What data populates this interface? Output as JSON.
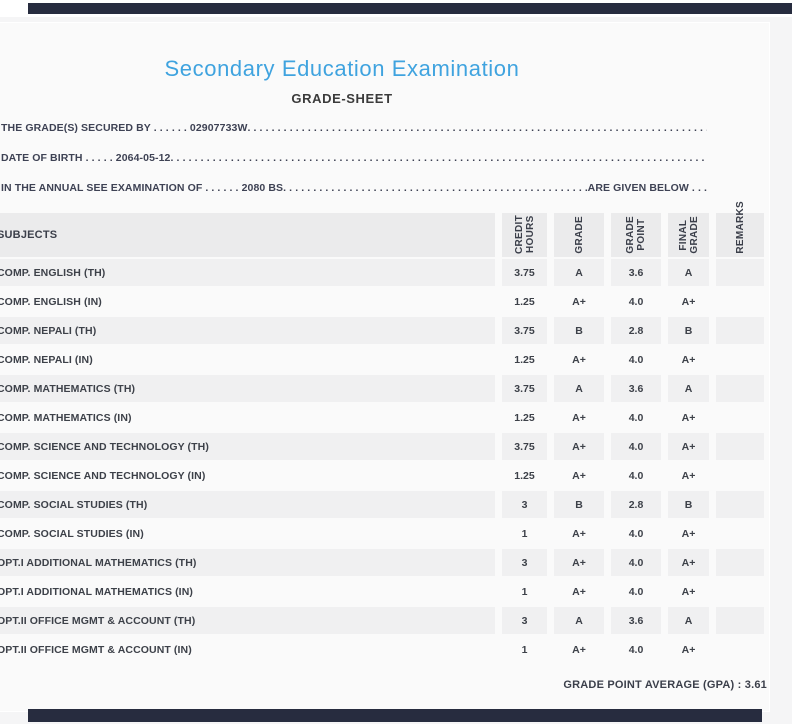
{
  "page": {
    "title": "Secondary Education Examination",
    "subtitle": "GRADE-SHEET"
  },
  "dot_fill": ". . . . . . . . . . . . . . . . . . . . . . . . . . . . . . . . . . . . . . . . . . . . . . . . . . . . . . . . . . . . . . . . . . . . . . . . . . . . . . . . . . . . . . . . . . . . . . . . . . . .",
  "info_lines": [
    {
      "lead": "THE GRADE(S) SECURED BY . . . . . . 02907733W ",
      "suffix": ""
    },
    {
      "lead": "DATE OF BIRTH . . . . . 2064-05-12 ",
      "suffix": ""
    },
    {
      "lead": "IN THE ANNUAL SEE EXAMINATION OF . . . . . . 2080 BS ",
      "suffix": " ARE GIVEN BELOW . . ."
    }
  ],
  "table": {
    "subjects_header": "SUBJECTS",
    "columns": [
      "CREDIT\nHOURS",
      "GRADE",
      "GRADE\nPOINT",
      "FINAL\nGRADE",
      "REMARKS"
    ],
    "rows": [
      {
        "subject": "COMP. ENGLISH (TH)",
        "credit_hours": "3.75",
        "grade": "A",
        "grade_point": "3.6",
        "final_grade": "A",
        "remarks": ""
      },
      {
        "subject": "COMP. ENGLISH (IN)",
        "credit_hours": "1.25",
        "grade": "A+",
        "grade_point": "4.0",
        "final_grade": "A+",
        "remarks": ""
      },
      {
        "subject": "COMP. NEPALI (TH)",
        "credit_hours": "3.75",
        "grade": "B",
        "grade_point": "2.8",
        "final_grade": "B",
        "remarks": ""
      },
      {
        "subject": "COMP. NEPALI (IN)",
        "credit_hours": "1.25",
        "grade": "A+",
        "grade_point": "4.0",
        "final_grade": "A+",
        "remarks": ""
      },
      {
        "subject": "COMP. MATHEMATICS (TH)",
        "credit_hours": "3.75",
        "grade": "A",
        "grade_point": "3.6",
        "final_grade": "A",
        "remarks": ""
      },
      {
        "subject": "COMP. MATHEMATICS (IN)",
        "credit_hours": "1.25",
        "grade": "A+",
        "grade_point": "4.0",
        "final_grade": "A+",
        "remarks": ""
      },
      {
        "subject": "COMP. SCIENCE AND TECHNOLOGY (TH)",
        "credit_hours": "3.75",
        "grade": "A+",
        "grade_point": "4.0",
        "final_grade": "A+",
        "remarks": ""
      },
      {
        "subject": "COMP. SCIENCE AND TECHNOLOGY (IN)",
        "credit_hours": "1.25",
        "grade": "A+",
        "grade_point": "4.0",
        "final_grade": "A+",
        "remarks": ""
      },
      {
        "subject": "COMP. SOCIAL STUDIES (TH)",
        "credit_hours": "3",
        "grade": "B",
        "grade_point": "2.8",
        "final_grade": "B",
        "remarks": ""
      },
      {
        "subject": "COMP. SOCIAL STUDIES (IN)",
        "credit_hours": "1",
        "grade": "A+",
        "grade_point": "4.0",
        "final_grade": "A+",
        "remarks": ""
      },
      {
        "subject": "OPT.I ADDITIONAL MATHEMATICS (TH)",
        "credit_hours": "3",
        "grade": "A+",
        "grade_point": "4.0",
        "final_grade": "A+",
        "remarks": ""
      },
      {
        "subject": "OPT.I ADDITIONAL MATHEMATICS (IN)",
        "credit_hours": "1",
        "grade": "A+",
        "grade_point": "4.0",
        "final_grade": "A+",
        "remarks": ""
      },
      {
        "subject": "OPT.II OFFICE MGMT & ACCOUNT (TH)",
        "credit_hours": "3",
        "grade": "A",
        "grade_point": "3.6",
        "final_grade": "A",
        "remarks": ""
      },
      {
        "subject": "OPT.II OFFICE MGMT & ACCOUNT (IN)",
        "credit_hours": "1",
        "grade": "A+",
        "grade_point": "4.0",
        "final_grade": "A+",
        "remarks": ""
      }
    ]
  },
  "footer": {
    "gpa_label": "GRADE POINT AVERAGE (GPA) : 3.61"
  },
  "colors": {
    "accent_blue": "#3fa3df",
    "navy_bar": "#272c3f",
    "card_bg": "#fafafa",
    "page_bg": "#f5f5f6",
    "row_stripe": "#f0f0f1",
    "header_cell": "#ebebec",
    "text_dark": "#3d4149"
  }
}
